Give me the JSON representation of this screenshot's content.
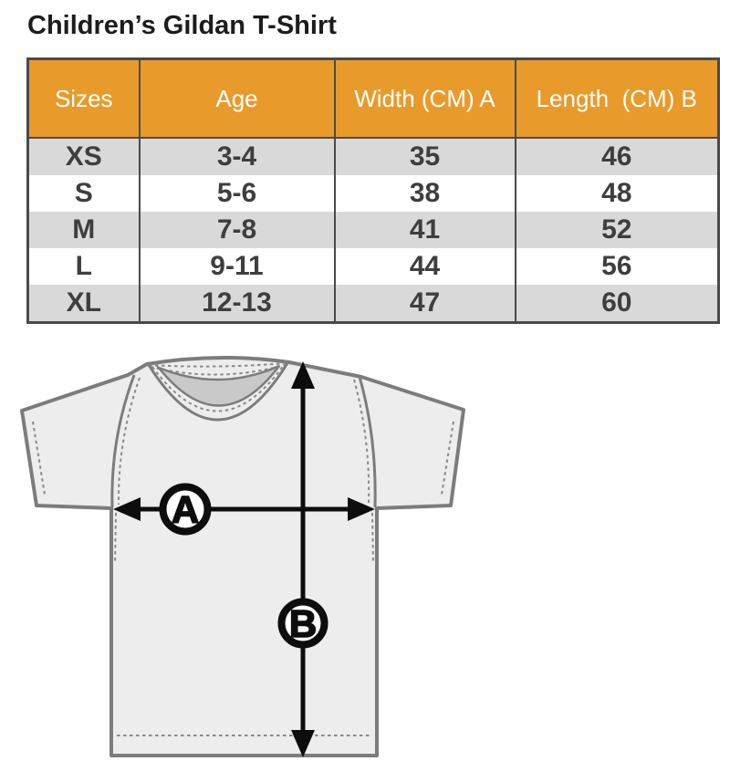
{
  "page": {
    "title": "Children’s Gildan T-Shirt"
  },
  "table": {
    "headers": [
      "Sizes",
      "Age",
      "Width (CM) A",
      "Length  (CM) B"
    ],
    "rows": [
      [
        "XS",
        "3-4",
        "35",
        "46"
      ],
      [
        "S",
        "5-6",
        "38",
        "48"
      ],
      [
        "M",
        "7-8",
        "41",
        "52"
      ],
      [
        "L",
        "9-11",
        "44",
        "56"
      ],
      [
        "XL",
        "12-13",
        "47",
        "60"
      ]
    ]
  },
  "chart_data": {
    "type": "table",
    "title": "Children’s Gildan T-Shirt",
    "categories": [
      "XS",
      "S",
      "M",
      "L",
      "XL"
    ],
    "series": [
      {
        "name": "Age",
        "values": [
          "3-4",
          "5-6",
          "7-8",
          "9-11",
          "12-13"
        ]
      },
      {
        "name": "Width (CM) A",
        "values": [
          35,
          38,
          41,
          44,
          47
        ]
      },
      {
        "name": "Length (CM) B",
        "values": [
          46,
          48,
          52,
          56,
          60
        ]
      }
    ]
  },
  "diagram": {
    "width_label": "A",
    "length_label": "B"
  },
  "colors": {
    "header_bg": "#E89B2B",
    "header_text": "#FFFFFF",
    "row_alt_bg": "#D9D9D9",
    "row_bg": "#FFFFFF",
    "cell_text": "#3E3E3E",
    "border": "#4A4A4A",
    "title_text": "#1C1C1C",
    "shirt_fill": "#EDEDED",
    "shirt_outline": "#7C7C7C",
    "neck_fill": "#C9C9C9",
    "stitch": "#8A8A8A",
    "arrow": "#0D0D0D"
  }
}
